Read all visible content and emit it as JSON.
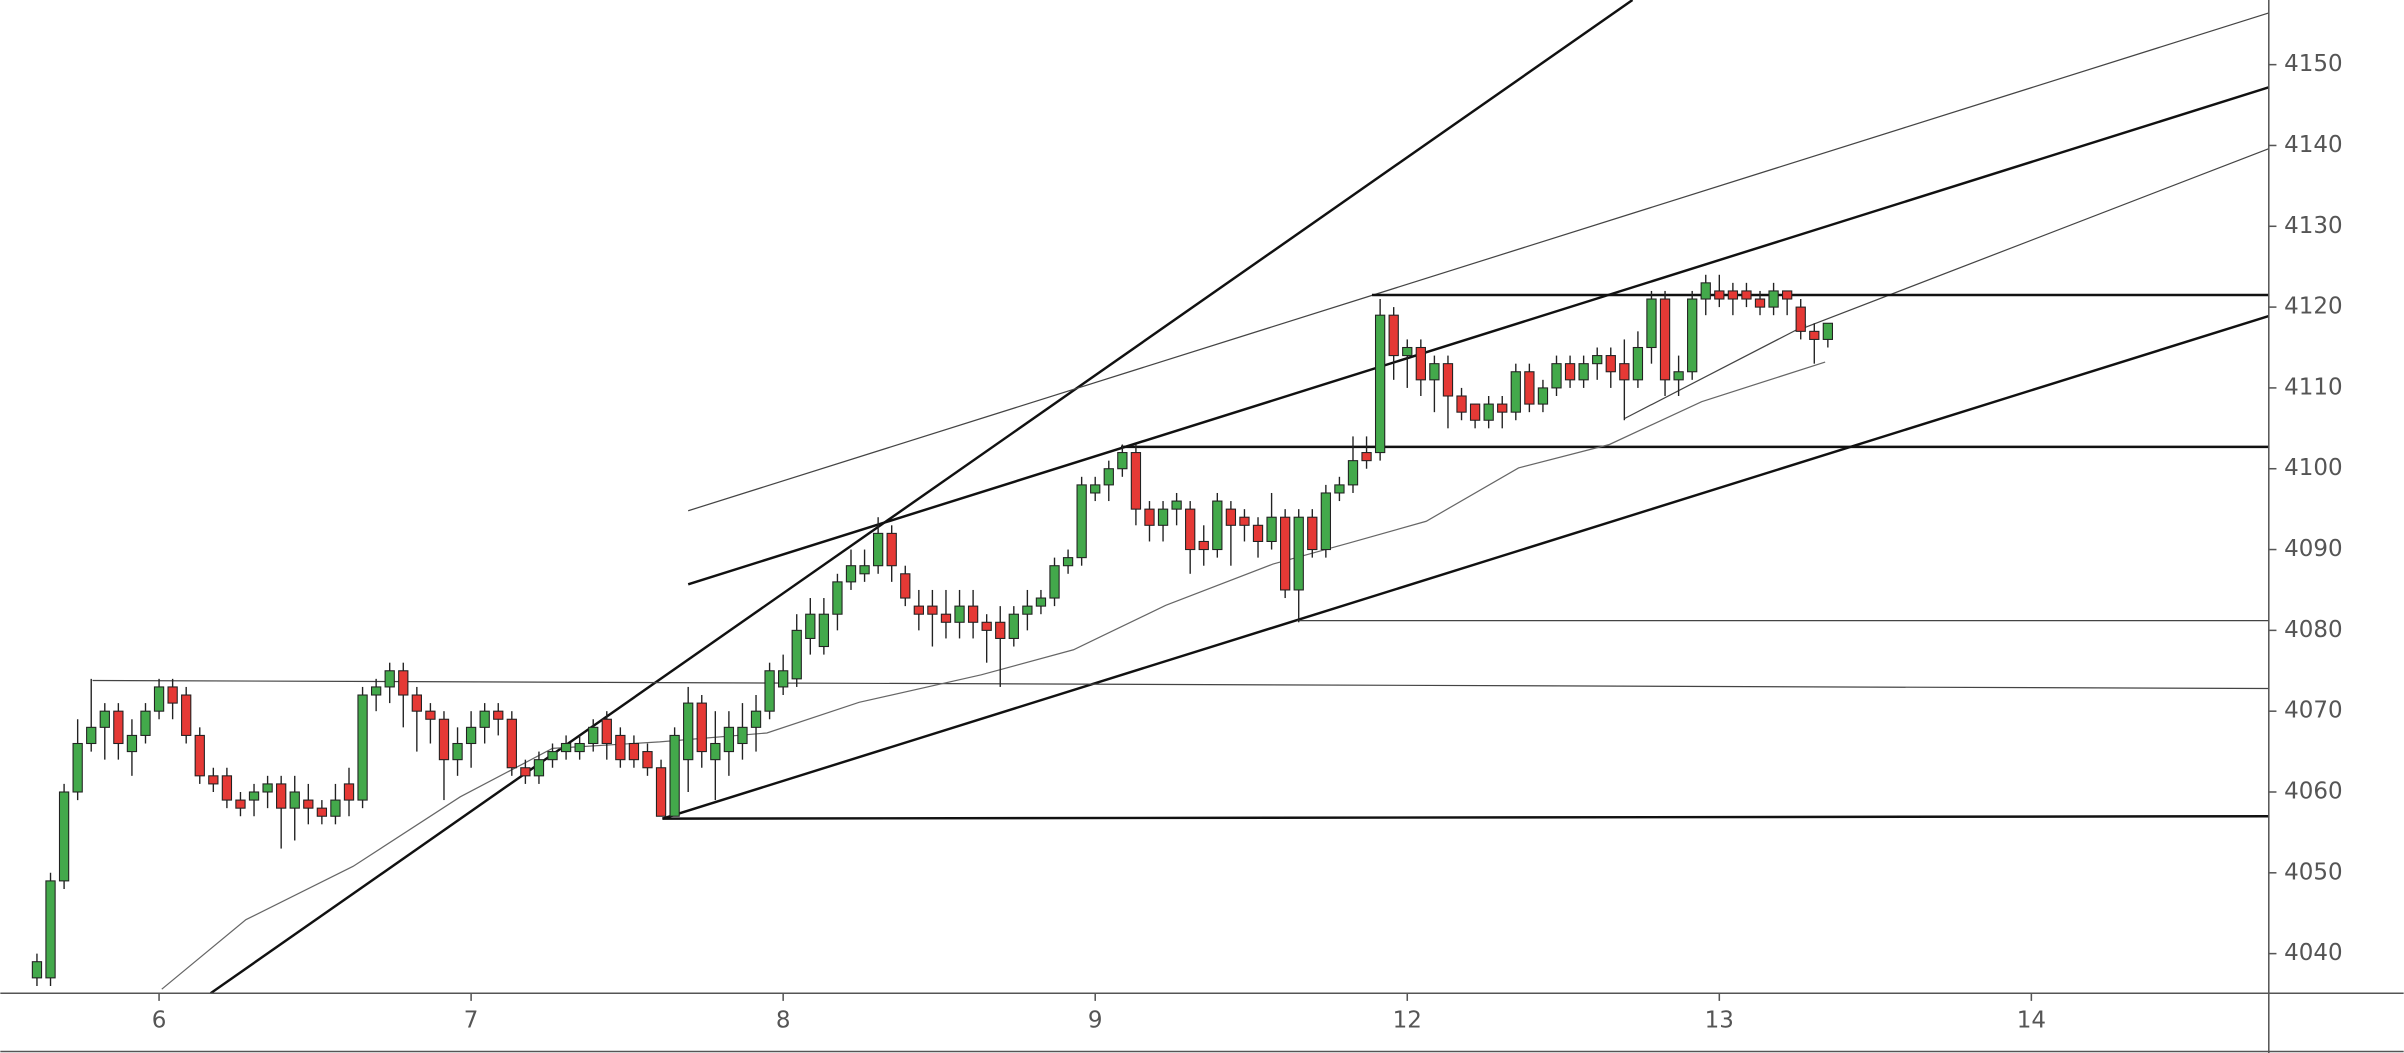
{
  "chart_data": {
    "type": "candlestick",
    "up_color": "#43a94b",
    "down_color": "#e53935",
    "xlim": [
      -2.7,
      164.5
    ],
    "ylim": [
      4035.1,
      4158
    ],
    "yticks": [
      4040,
      4050,
      4060,
      4070,
      4080,
      4090,
      4100,
      4110,
      4120,
      4130,
      4140,
      4150
    ],
    "xticks": [
      {
        "value": 9,
        "label": "6"
      },
      {
        "value": 32,
        "label": "7"
      },
      {
        "value": 55,
        "label": "8"
      },
      {
        "value": 78,
        "label": "9"
      },
      {
        "value": 101,
        "label": "12"
      },
      {
        "value": 124,
        "label": "13"
      },
      {
        "value": 147,
        "label": "14"
      }
    ],
    "x": [
      0,
      1,
      2,
      3,
      4,
      5,
      6,
      7,
      8,
      9,
      10,
      11,
      12,
      13,
      14,
      15,
      16,
      17,
      18,
      19,
      20,
      21,
      22,
      23,
      24,
      25,
      26,
      27,
      28,
      29,
      30,
      31,
      32,
      33,
      34,
      35,
      36,
      37,
      38,
      39,
      40,
      41,
      42,
      43,
      44,
      45,
      46,
      47,
      48,
      49,
      50,
      51,
      52,
      53,
      54,
      55,
      56,
      57,
      58,
      59,
      60,
      61,
      62,
      63,
      64,
      65,
      66,
      67,
      68,
      69,
      70,
      71,
      72,
      73,
      74,
      75,
      76,
      77,
      78,
      79,
      80,
      81,
      82,
      83,
      84,
      85,
      86,
      87,
      88,
      89,
      90,
      91,
      92,
      93,
      94,
      95,
      96,
      97,
      98,
      99,
      100,
      101,
      102,
      103,
      104,
      105,
      106,
      107,
      108,
      109,
      110,
      111,
      112,
      113,
      114,
      115,
      116,
      117,
      118,
      119,
      120,
      121,
      122,
      123,
      124,
      125,
      126,
      127,
      128,
      129,
      130,
      131,
      132
    ],
    "open": [
      4037,
      4037,
      4049,
      4060,
      4066,
      4068,
      4070,
      4065,
      4067,
      4070,
      4073,
      4072,
      4067,
      4062,
      4062,
      4059,
      4059,
      4060,
      4061,
      4058,
      4059,
      4058,
      4057,
      4061,
      4059,
      4072,
      4073,
      4075,
      4072,
      4070,
      4069,
      4064,
      4066,
      4068,
      4070,
      4069,
      4063,
      4062,
      4064,
      4065,
      4065,
      4066,
      4069,
      4067,
      4066,
      4065,
      4063,
      4057,
      4064,
      4071,
      4064,
      4065,
      4066,
      4068,
      4070,
      4073,
      4074,
      4079,
      4078,
      4082,
      4086,
      4087,
      4088,
      4092,
      4087,
      4083,
      4083,
      4082,
      4081,
      4083,
      4081,
      4081,
      4079,
      4082,
      4083,
      4084,
      4088,
      4089,
      4097,
      4098,
      4100,
      4102,
      4095,
      4093,
      4095,
      4095,
      4091,
      4090,
      4095,
      4094,
      4093,
      4091,
      4094,
      4085,
      4094,
      4090,
      4097,
      4098,
      4102,
      4102,
      4119,
      4114,
      4115,
      4111,
      4113,
      4109,
      4108,
      4106,
      4108,
      4107,
      4112,
      4108,
      4110,
      4113,
      4111,
      4113,
      4114,
      4113,
      4111,
      4115,
      4121,
      4111,
      4112,
      4121,
      4122,
      4122,
      4122,
      4121,
      4120,
      4122,
      4120,
      4117,
      4116
    ],
    "high": [
      4040,
      4050,
      4061,
      4069,
      4074,
      4071,
      4071,
      4069,
      4071,
      4074,
      4074,
      4073,
      4068,
      4063,
      4063,
      4060,
      4061,
      4062,
      4062,
      4062,
      4061,
      4059,
      4061,
      4063,
      4073,
      4074,
      4076,
      4076,
      4073,
      4071,
      4070,
      4068,
      4070,
      4071,
      4071,
      4070,
      4064,
      4065,
      4066,
      4067,
      4067,
      4069,
      4070,
      4068,
      4067,
      4066,
      4064,
      4068,
      4073,
      4072,
      4070,
      4070,
      4071,
      4072,
      4076,
      4077,
      4082,
      4084,
      4084,
      4087,
      4090,
      4090,
      4094,
      4093,
      4088,
      4085,
      4085,
      4085,
      4085,
      4085,
      4082,
      4083,
      4083,
      4085,
      4085,
      4089,
      4090,
      4099,
      4099,
      4101,
      4103,
      4103,
      4096,
      4096,
      4097,
      4096,
      4093,
      4097,
      4096,
      4095,
      4094,
      4097,
      4095,
      4095,
      4095,
      4098,
      4099,
      4104,
      4104,
      4121,
      4120,
      4116,
      4116,
      4114,
      4114,
      4110,
      4108,
      4109,
      4109,
      4113,
      4113,
      4111,
      4114,
      4114,
      4114,
      4115,
      4115,
      4116,
      4117,
      4122,
      4122,
      4114,
      4122,
      4124,
      4124,
      4123,
      4123,
      4122,
      4123,
      4122,
      4121,
      4118,
      4118
    ],
    "low": [
      4036,
      4036,
      4048,
      4059,
      4065,
      4064,
      4064,
      4062,
      4066,
      4069,
      4069,
      4066,
      4061,
      4060,
      4058,
      4057,
      4057,
      4058,
      4053,
      4054,
      4056,
      4056,
      4056,
      4057,
      4058,
      4070,
      4071,
      4068,
      4065,
      4066,
      4059,
      4062,
      4063,
      4066,
      4067,
      4062,
      4061,
      4061,
      4063,
      4064,
      4064,
      4065,
      4064,
      4063,
      4063,
      4062,
      4057,
      4057,
      4060,
      4063,
      4059,
      4062,
      4064,
      4065,
      4069,
      4072,
      4073,
      4077,
      4077,
      4080,
      4085,
      4086,
      4087,
      4086,
      4083,
      4080,
      4078,
      4079,
      4079,
      4079,
      4076,
      4073,
      4078,
      4080,
      4082,
      4083,
      4087,
      4088,
      4096,
      4096,
      4099,
      4093,
      4091,
      4091,
      4093,
      4087,
      4088,
      4089,
      4088,
      4091,
      4089,
      4090,
      4084,
      4081,
      4089,
      4089,
      4096,
      4097,
      4100,
      4101,
      4111,
      4110,
      4109,
      4107,
      4105,
      4106,
      4105,
      4105,
      4105,
      4106,
      4107,
      4107,
      4109,
      4110,
      4110,
      4111,
      4110,
      4106,
      4110,
      4113,
      4109,
      4109,
      4111,
      4119,
      4120,
      4119,
      4120,
      4119,
      4119,
      4119,
      4116,
      4113,
      4115
    ],
    "close": [
      4039,
      4049,
      4060,
      4066,
      4068,
      4070,
      4066,
      4067,
      4070,
      4073,
      4071,
      4067,
      4062,
      4061,
      4059,
      4058,
      4060,
      4061,
      4058,
      4060,
      4058,
      4057,
      4059,
      4059,
      4072,
      4073,
      4075,
      4072,
      4070,
      4069,
      4064,
      4066,
      4068,
      4070,
      4069,
      4063,
      4062,
      4064,
      4065,
      4066,
      4066,
      4068,
      4066,
      4064,
      4064,
      4063,
      4057,
      4067,
      4071,
      4065,
      4066,
      4068,
      4068,
      4070,
      4075,
      4075,
      4080,
      4082,
      4082,
      4086,
      4088,
      4088,
      4092,
      4088,
      4084,
      4082,
      4082,
      4081,
      4083,
      4081,
      4080,
      4079,
      4082,
      4083,
      4084,
      4088,
      4089,
      4098,
      4098,
      4100,
      4102,
      4095,
      4093,
      4095,
      4096,
      4090,
      4090,
      4096,
      4093,
      4093,
      4091,
      4094,
      4085,
      4094,
      4090,
      4097,
      4098,
      4101,
      4101,
      4119,
      4114,
      4115,
      4111,
      4113,
      4109,
      4107,
      4106,
      4108,
      4107,
      4112,
      4108,
      4110,
      4113,
      4111,
      4113,
      4114,
      4112,
      4111,
      4115,
      4121,
      4111,
      4112,
      4121,
      4123,
      4121,
      4121,
      4121,
      4120,
      4122,
      4121,
      4117,
      4116,
      4118
    ],
    "drawings": [
      {
        "x": [
          12.8,
          117.6
        ],
        "y": [
          4035.1,
          4158
        ],
        "weight": 1.6,
        "color": "#111"
      },
      {
        "x": [
          48.0,
          164.5
        ],
        "y": [
          4094.8,
          4156.4
        ],
        "weight": 0.8,
        "color": "#444"
      },
      {
        "x": [
          48.0,
          164.5
        ],
        "y": [
          4085.7,
          4147.2
        ],
        "weight": 1.6,
        "color": "#111"
      },
      {
        "x": [
          46.1,
          164.5
        ],
        "y": [
          4056.7,
          4118.9
        ],
        "weight": 1.6,
        "color": "#111"
      },
      {
        "x": [
          130.2,
          164.5
        ],
        "y": [
          4117.4,
          4139.6
        ],
        "weight": 0.8,
        "color": "#444"
      },
      {
        "x": [
          117,
          130.4
        ],
        "y": [
          4106.2,
          4117.8
        ],
        "weight": 0.8,
        "color": "#444"
      },
      {
        "x": [
          98.4,
          164.5
        ],
        "y": [
          4121.5,
          4121.5
        ],
        "weight": 1.6,
        "color": "#111"
      },
      {
        "x": [
          79.9,
          164.5
        ],
        "y": [
          4102.7,
          4102.7
        ],
        "weight": 1.6,
        "color": "#111"
      },
      {
        "x": [
          92.9,
          164.5
        ],
        "y": [
          4081.2,
          4081.2
        ],
        "weight": 0.8,
        "color": "#444"
      },
      {
        "x": [
          4.1,
          164.5
        ],
        "y": [
          4073.8,
          4072.8
        ],
        "weight": 0.8,
        "color": "#444"
      },
      {
        "x": [
          46.1,
          164.5
        ],
        "y": [
          4056.7,
          4057
        ],
        "weight": 1.6,
        "color": "#111"
      },
      {
        "x": [
          9.2,
          15.4,
          23.3,
          31.2,
          38.0,
          45.9,
          53.8,
          60.6,
          69.6,
          76.4,
          83.2,
          91.1,
          96.7,
          102.4,
          109.2,
          115.9,
          122.7,
          131.8
        ],
        "y": [
          4035.6,
          4044.2,
          4050.8,
          4059.4,
          4065.4,
          4066.2,
          4067.3,
          4071.1,
          4074.5,
          4077.6,
          4083.1,
          4088.2,
          4090.8,
          4093.5,
          4100.1,
          4103.0,
          4108.3,
          4113.2
        ],
        "weight": 0.8,
        "color": "#666"
      }
    ]
  }
}
